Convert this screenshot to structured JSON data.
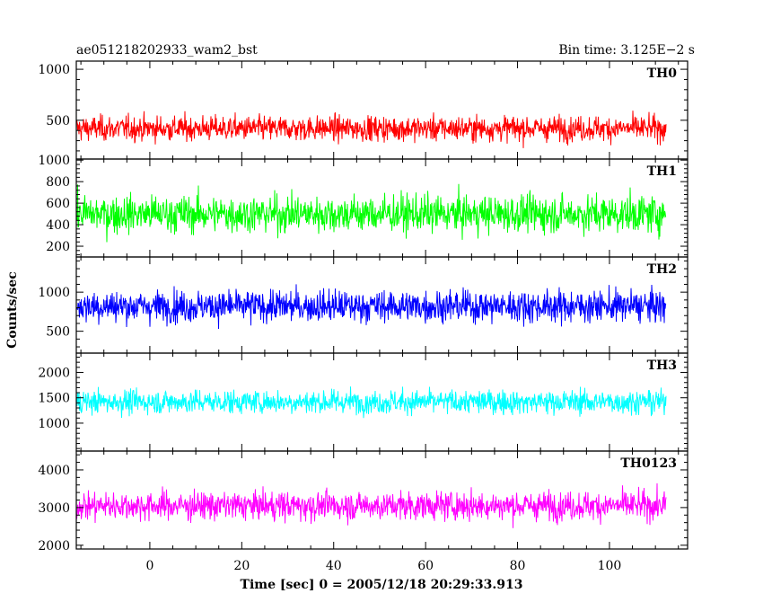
{
  "header": {
    "title": "ae051218202933_wam2_bst",
    "bin_time": "Bin time: 3.125E−2 s"
  },
  "ylabel": "Counts/sec",
  "xlabel": "Time [sec] 0 = 2005/12/18 20:29:33.913",
  "chart_data": [
    {
      "type": "line",
      "name": "TH0",
      "color": "#ff0000",
      "xlim": [
        -16,
        117
      ],
      "ylim": [
        120,
        1080
      ],
      "yticks": [
        500,
        1000
      ],
      "mean": 420,
      "sd": 120,
      "low": 175,
      "high": 1060
    },
    {
      "type": "line",
      "name": "TH1",
      "color": "#00ff00",
      "xlim": [
        -16,
        117
      ],
      "ylim": [
        100,
        1010
      ],
      "yticks": [
        200,
        400,
        600,
        800,
        1000
      ],
      "mean": 500,
      "sd": 170,
      "low": 130,
      "high": 1000
    },
    {
      "type": "line",
      "name": "TH2",
      "color": "#0000ff",
      "xlim": [
        -16,
        117
      ],
      "ylim": [
        220,
        1450
      ],
      "yticks": [
        500,
        1000
      ],
      "mean": 820,
      "sd": 200,
      "low": 300,
      "high": 1440
    },
    {
      "type": "line",
      "name": "TH3",
      "color": "#00ffff",
      "xlim": [
        -16,
        117
      ],
      "ylim": [
        450,
        2380
      ],
      "yticks": [
        1000,
        1500,
        2000
      ],
      "mean": 1420,
      "sd": 230,
      "low": 520,
      "high": 2380
    },
    {
      "type": "line",
      "name": "TH0123",
      "color": "#ff00ff",
      "xlim": [
        -16,
        117
      ],
      "ylim": [
        1900,
        4500
      ],
      "yticks": [
        2000,
        3000,
        4000
      ],
      "mean": 3050,
      "sd": 370,
      "low": 1950,
      "high": 4450
    }
  ],
  "x_axis": {
    "range": [
      -16,
      117
    ],
    "series_start": -15.9,
    "series_end": 112.4,
    "ticks": [
      0,
      20,
      40,
      60,
      80,
      100
    ],
    "minor_step": 5
  }
}
